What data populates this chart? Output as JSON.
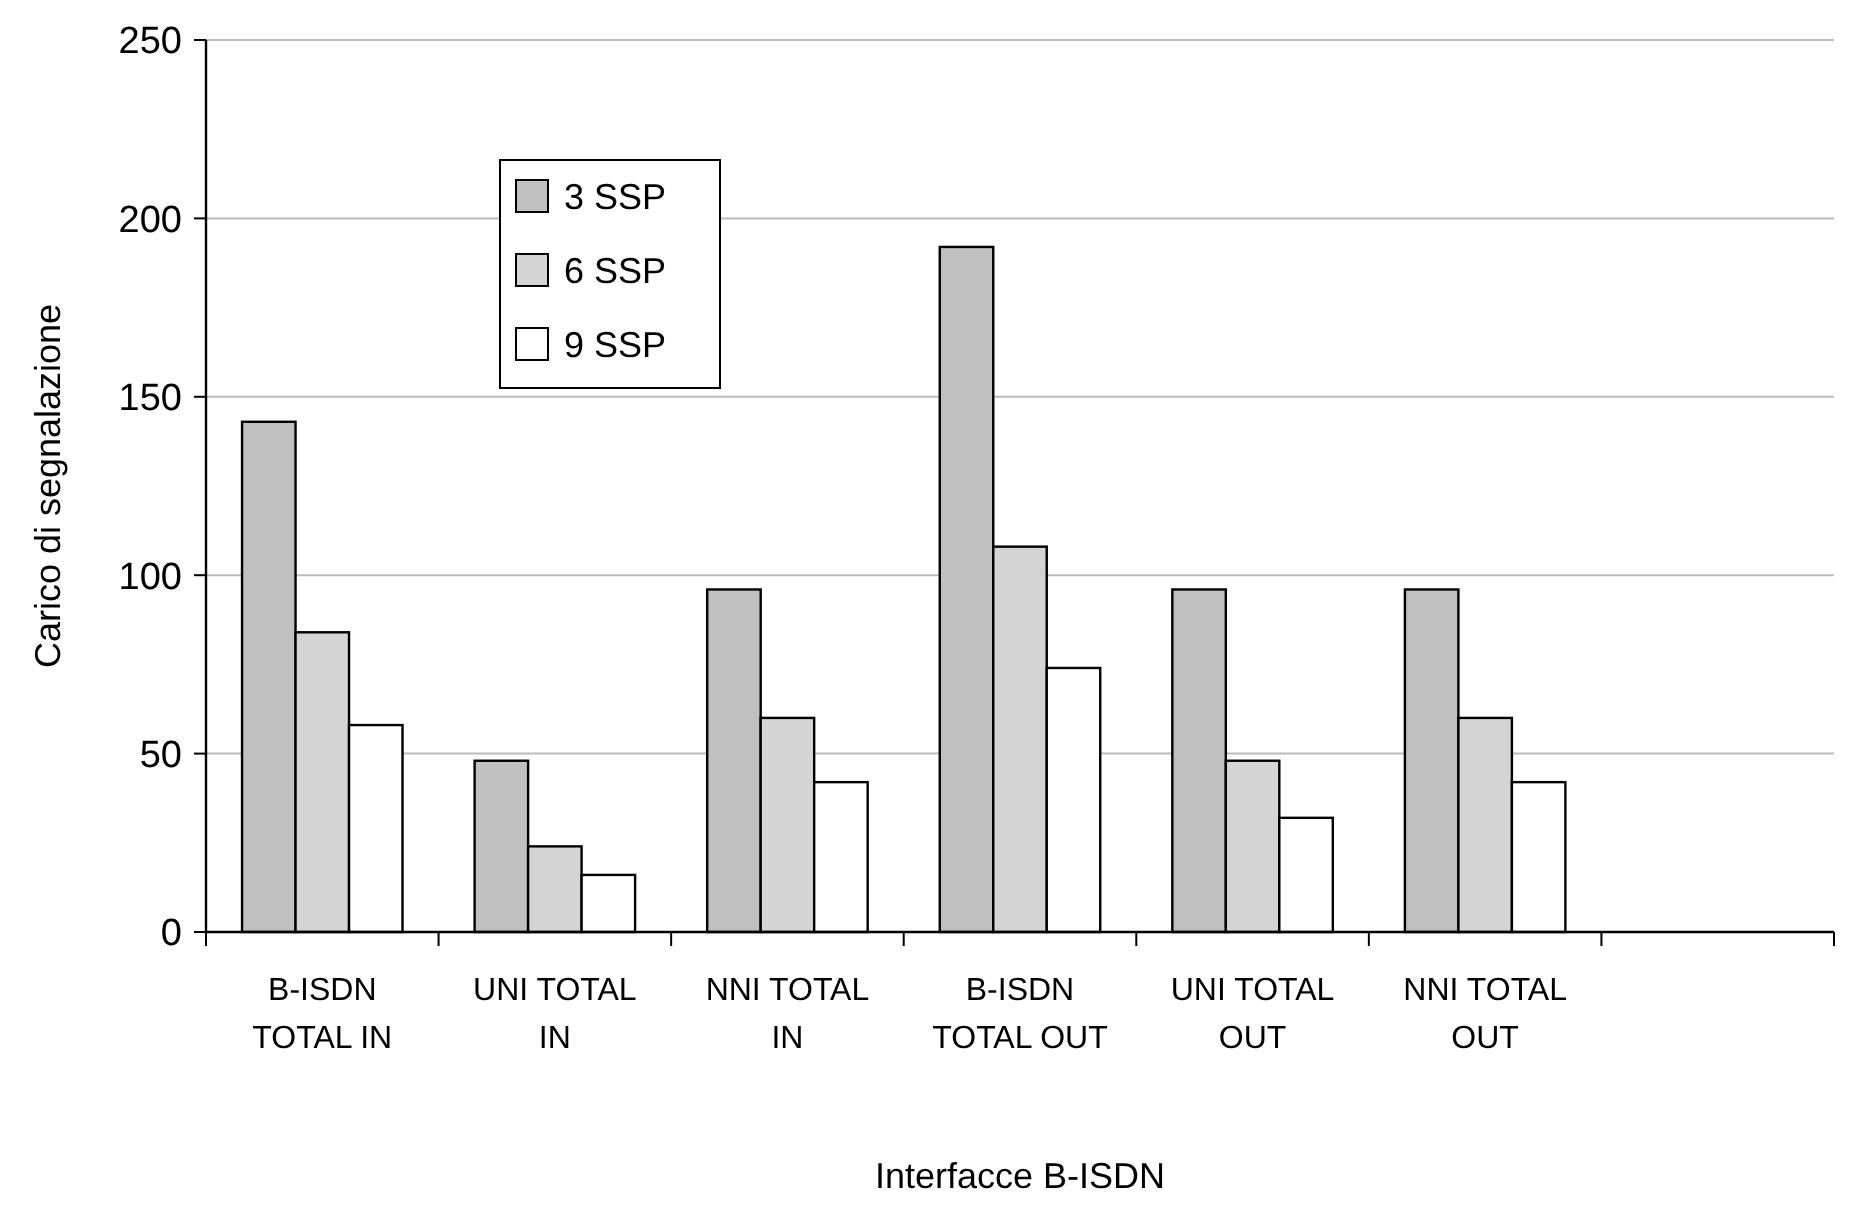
{
  "chart_data": {
    "type": "bar",
    "xlabel": "Interfacce B-ISDN",
    "ylabel": "Carico di segnalazione",
    "categories": [
      "B-ISDN TOTAL IN",
      "UNI TOTAL IN",
      "NNI TOTAL IN",
      "B-ISDN TOTAL OUT",
      "UNI TOTAL OUT",
      "NNI TOTAL OUT",
      null
    ],
    "series": [
      {
        "name": "3 SSP",
        "color": "#c0c0c0",
        "values": [
          143,
          48,
          96,
          192,
          96,
          96,
          null
        ]
      },
      {
        "name": "6 SSP",
        "color": "#d4d4d4",
        "values": [
          84,
          24,
          60,
          108,
          48,
          60,
          null
        ]
      },
      {
        "name": "9 SSP",
        "color": "#ffffff",
        "values": [
          58,
          16,
          42,
          74,
          32,
          42,
          null
        ]
      }
    ],
    "ylim": [
      0,
      250
    ],
    "yticks": [
      0,
      50,
      100,
      150,
      200,
      250
    ],
    "grid": "y",
    "legend": "top left"
  }
}
